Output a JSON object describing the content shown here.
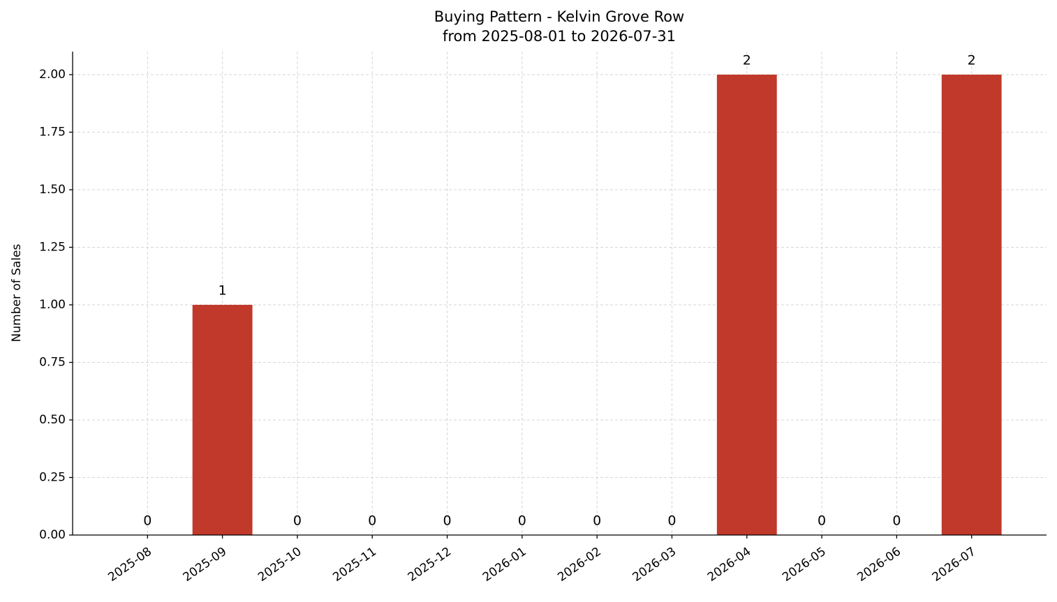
{
  "chart_data": {
    "type": "bar",
    "title": "Buying Pattern - Kelvin Grove Row",
    "subtitle": "from 2025-08-01 to 2026-07-31",
    "y_label": "Number of Sales",
    "categories": [
      "2025-08",
      "2025-09",
      "2025-10",
      "2025-11",
      "2025-12",
      "2026-01",
      "2026-02",
      "2026-03",
      "2026-04",
      "2026-05",
      "2026-06",
      "2026-07"
    ],
    "values": [
      0,
      1,
      0,
      0,
      0,
      0,
      0,
      0,
      2,
      0,
      0,
      2
    ],
    "color": "#c0392b",
    "ylim": [
      0,
      2.1
    ],
    "yticks": [
      {
        "value": 0,
        "label": "0.00"
      },
      {
        "value": 0.25,
        "label": "0.25"
      },
      {
        "value": 0.5,
        "label": "0.50"
      },
      {
        "value": 0.75,
        "label": "0.75"
      },
      {
        "value": 1,
        "label": "1.00"
      },
      {
        "value": 1.25,
        "label": "1.25"
      },
      {
        "value": 1.5,
        "label": "1.50"
      },
      {
        "value": 1.75,
        "label": "1.75"
      },
      {
        "value": 2,
        "label": "2.00"
      }
    ],
    "grid": true
  }
}
